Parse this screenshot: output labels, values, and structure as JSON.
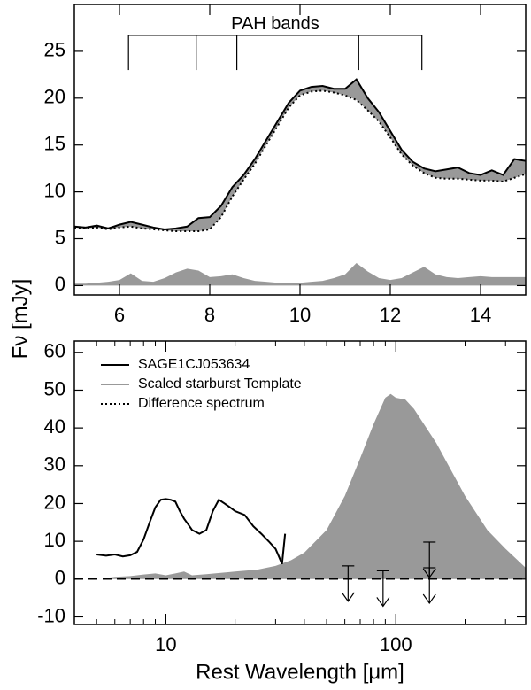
{
  "chart_data": [
    {
      "type": "line",
      "ylabel": "Fν [mJy]",
      "xlim": [
        5,
        15
      ],
      "xticks": [
        6,
        8,
        10,
        12,
        14
      ],
      "ylim": [
        -1,
        30
      ],
      "yticks": [
        0,
        5,
        10,
        15,
        20,
        25
      ],
      "x": [
        5,
        5.25,
        5.5,
        5.75,
        6,
        6.25,
        6.5,
        6.75,
        7,
        7.25,
        7.5,
        7.75,
        8,
        8.25,
        8.5,
        8.75,
        9,
        9.25,
        9.5,
        9.75,
        10,
        10.25,
        10.5,
        10.75,
        11,
        11.25,
        11.5,
        11.75,
        12,
        12.25,
        12.5,
        12.75,
        13,
        13.25,
        13.5,
        13.75,
        14,
        14.25,
        14.5,
        14.75,
        15
      ],
      "series": [
        {
          "color": "#000000",
          "style": "solid",
          "values": [
            6.3,
            6.2,
            6.4,
            6.1,
            6.5,
            6.8,
            6.5,
            6.2,
            6.0,
            6.1,
            6.3,
            7.2,
            7.3,
            8.5,
            10.5,
            11.8,
            13.5,
            15.5,
            17.5,
            19.5,
            20.8,
            21.2,
            21.3,
            21.0,
            21.0,
            22.0,
            20.0,
            18.5,
            16.5,
            14.5,
            13.2,
            12.5,
            12.2,
            12.4,
            12.6,
            12.0,
            11.8,
            12.3,
            11.8,
            13.5,
            13.3
          ]
        },
        {
          "color": "#000000",
          "style": "dotted",
          "values": [
            6.2,
            6.1,
            6.2,
            6.0,
            6.2,
            6.3,
            6.1,
            6.0,
            5.9,
            5.8,
            5.8,
            5.8,
            6.0,
            7.3,
            9.5,
            11.3,
            13.0,
            15.0,
            17.0,
            19.0,
            20.3,
            20.7,
            20.8,
            20.6,
            20.3,
            19.8,
            18.7,
            17.5,
            15.8,
            14.0,
            12.8,
            12.0,
            11.5,
            11.4,
            11.4,
            11.3,
            11.2,
            11.2,
            11.1,
            11.5,
            11.9
          ]
        },
        {
          "color": "#999999",
          "style": "area",
          "values": [
            0.2,
            0.2,
            0.3,
            0.4,
            0.6,
            1.3,
            0.5,
            0.4,
            0.8,
            1.4,
            1.8,
            1.6,
            0.9,
            1.0,
            1.2,
            0.8,
            0.5,
            0.4,
            0.3,
            0.3,
            0.3,
            0.4,
            0.5,
            0.8,
            1.2,
            2.4,
            1.5,
            0.8,
            0.6,
            0.8,
            1.4,
            2.0,
            1.2,
            0.9,
            0.8,
            0.9,
            1.0,
            0.9,
            0.9,
            0.9,
            0.9
          ]
        }
      ],
      "fill_between": {
        "series": [
          0,
          1
        ],
        "color": "#999999"
      },
      "pah_bands": {
        "label": "PAH bands",
        "x": [
          6.2,
          7.7,
          8.6,
          11.3,
          12.7
        ],
        "y": 26.7,
        "y_end": 23
      }
    },
    {
      "type": "line",
      "xscale": "log",
      "xlabel": "Rest Wavelength [μm]",
      "xlim": [
        4,
        367
      ],
      "xticks": [
        10,
        100
      ],
      "xminorticks": [
        5,
        6,
        7,
        8,
        9,
        20,
        30,
        40,
        50,
        60,
        70,
        80,
        90,
        200,
        300
      ],
      "ylim": [
        -12,
        63
      ],
      "yticks": [
        -10,
        0,
        10,
        20,
        30,
        40,
        50,
        60
      ],
      "series": [
        {
          "color": "#999999",
          "style": "area",
          "x": [
            5.5,
            6,
            7,
            8,
            9,
            10,
            11,
            12,
            13,
            15,
            20,
            25,
            30,
            35,
            40,
            50,
            60,
            70,
            80,
            90,
            95,
            100,
            110,
            120,
            150,
            200,
            250,
            300,
            367
          ],
          "values": [
            0.3,
            0.6,
            0.8,
            1.2,
            1.5,
            1.0,
            1.5,
            2.0,
            1.0,
            1.3,
            2.0,
            2.5,
            3.5,
            5,
            7,
            13,
            22,
            32,
            41,
            48,
            49,
            48,
            47.5,
            45,
            36,
            22,
            13,
            8,
            3
          ]
        },
        {
          "color": "#000000",
          "style": "solid",
          "x": [
            5,
            5.5,
            6,
            6.5,
            7,
            7.5,
            8,
            8.5,
            9,
            9.5,
            10,
            10.5,
            11,
            11.5,
            12,
            12.5,
            13,
            14,
            15,
            16,
            17,
            18,
            19,
            20,
            22,
            24,
            26,
            28,
            30,
            31,
            32,
            33
          ],
          "values": [
            6.5,
            6.2,
            6.5,
            6.0,
            6.3,
            7.2,
            10.5,
            15,
            19,
            21,
            21.2,
            21,
            20.5,
            18,
            16,
            14.5,
            13,
            12,
            13,
            18,
            21,
            20,
            19,
            18,
            17,
            14,
            12,
            10,
            8,
            6,
            4,
            12
          ]
        }
      ],
      "zero_line": true,
      "upper_limits": {
        "x": [
          62,
          88,
          140,
          140
        ],
        "values": [
          3.5,
          2.2,
          9.8,
          3.0
        ]
      },
      "legend": {
        "position": "upper left",
        "entries": [
          {
            "label": "SAGE1CJ053634",
            "color": "#000000",
            "style": "solid"
          },
          {
            "label": "Scaled starburst Template",
            "color": "#999999",
            "style": "solid"
          },
          {
            "label": "Difference spectrum",
            "color": "#000000",
            "style": "dotted"
          }
        ]
      }
    }
  ]
}
